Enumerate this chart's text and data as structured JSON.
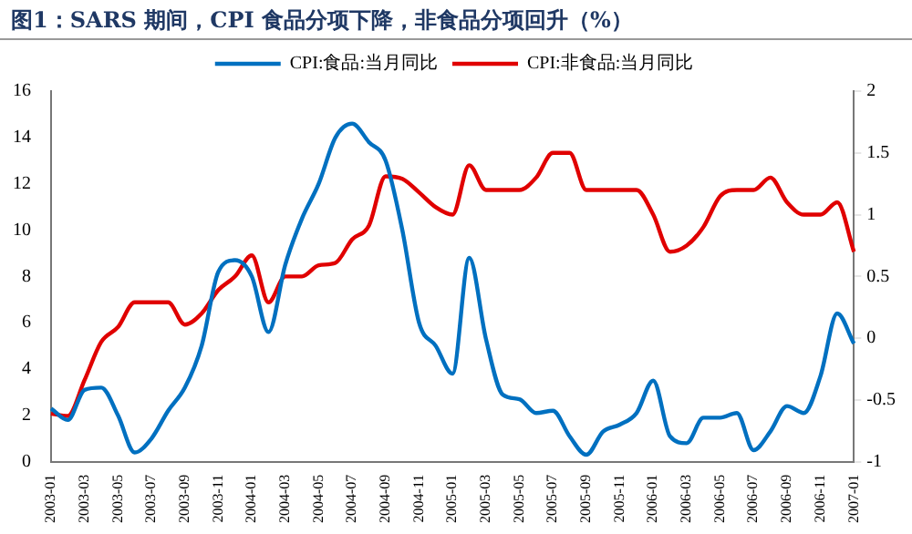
{
  "chart_data": {
    "type": "line",
    "title": "图1：SARS 期间，CPI 食品分项下降，非食品分项回升（%）",
    "categories": [
      "2003-01",
      null,
      "2003-03",
      null,
      "2003-05",
      null,
      "2003-07",
      null,
      "2003-09",
      null,
      "2003-11",
      null,
      "2004-01",
      null,
      "2004-03",
      null,
      "2004-05",
      null,
      "2004-07",
      null,
      "2004-09",
      null,
      "2004-11",
      null,
      "2005-01",
      null,
      "2005-03",
      null,
      "2005-05",
      null,
      "2005-07",
      null,
      "2005-09",
      null,
      "2005-11",
      null,
      "2006-01",
      null,
      "2006-03",
      null,
      "2006-05",
      null,
      "2006-07",
      null,
      "2006-09",
      null,
      "2006-11",
      null,
      "2007-01"
    ],
    "series": [
      {
        "name": "CPI:食品:当月同比",
        "color": "#0070c0",
        "axis": "y",
        "values": [
          2.3,
          1.8,
          3.1,
          3.2,
          2.0,
          0.4,
          1.0,
          2.2,
          3.2,
          5.0,
          8.2,
          8.7,
          8.0,
          5.6,
          8.5,
          10.5,
          12.0,
          14.0,
          14.6,
          13.8,
          13.0,
          10.0,
          6.0,
          5.0,
          3.8,
          8.8,
          5.3,
          2.9,
          2.7,
          2.1,
          2.2,
          1.1,
          0.3,
          1.3,
          1.6,
          2.1,
          3.5,
          1.1,
          0.8,
          1.9,
          1.9,
          2.1,
          0.5,
          1.3,
          2.4,
          2.1,
          3.7,
          6.4,
          5.1
        ]
      },
      {
        "name": "CPI:非食品:当月同比",
        "color": "#e00000",
        "axis": "y2",
        "values": [
          -0.61,
          -0.63,
          -0.34,
          -0.03,
          0.09,
          0.29,
          0.29,
          0.29,
          0.11,
          0.2,
          0.39,
          0.5,
          0.67,
          0.29,
          0.5,
          0.5,
          0.59,
          0.61,
          0.8,
          0.91,
          1.31,
          1.29,
          1.18,
          1.06,
          1.0,
          1.4,
          1.2,
          1.2,
          1.2,
          1.3,
          1.5,
          1.5,
          1.2,
          1.2,
          1.2,
          1.2,
          1.0,
          0.7,
          0.75,
          0.9,
          1.15,
          1.2,
          1.2,
          1.3,
          1.1,
          1.0,
          1.0,
          1.1,
          0.7
        ]
      }
    ],
    "ylim": [
      0,
      16
    ],
    "yticks": [
      0,
      2,
      4,
      6,
      8,
      10,
      12,
      14,
      16
    ],
    "y2lim": [
      -1,
      2
    ],
    "y2ticks": [
      -1,
      -0.5,
      0,
      0.5,
      1,
      1.5,
      2
    ],
    "grid": false,
    "legend": "top",
    "marker": "none",
    "line_style": "solid"
  }
}
